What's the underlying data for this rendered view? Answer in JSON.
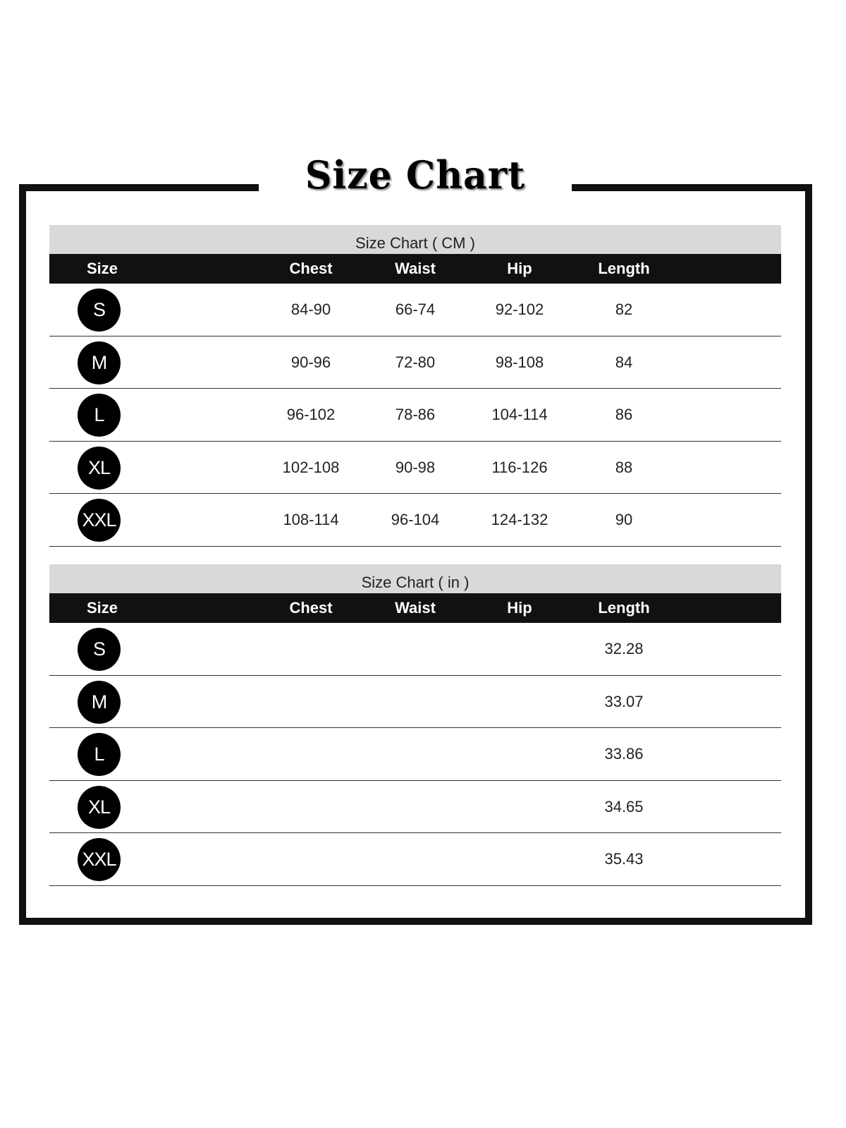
{
  "title": "Size Chart",
  "columns": [
    "Size",
    "Chest",
    "Waist",
    "Hip",
    "Length"
  ],
  "tables": [
    {
      "caption": "Size Chart ( CM )",
      "rows": [
        {
          "size": "S",
          "chest": "84-90",
          "waist": "66-74",
          "hip": "92-102",
          "length": "82"
        },
        {
          "size": "M",
          "chest": "90-96",
          "waist": "72-80",
          "hip": "98-108",
          "length": "84"
        },
        {
          "size": "L",
          "chest": "96-102",
          "waist": "78-86",
          "hip": "104-114",
          "length": "86"
        },
        {
          "size": "XL",
          "chest": "102-108",
          "waist": "90-98",
          "hip": "116-126",
          "length": "88"
        },
        {
          "size": "XXL",
          "chest": "108-114",
          "waist": "96-104",
          "hip": "124-132",
          "length": "90"
        }
      ]
    },
    {
      "caption": "Size Chart ( in )",
      "rows": [
        {
          "size": "S",
          "chest": "",
          "waist": "",
          "hip": "",
          "length": "32.28"
        },
        {
          "size": "M",
          "chest": "",
          "waist": "",
          "hip": "",
          "length": "33.07"
        },
        {
          "size": "L",
          "chest": "",
          "waist": "",
          "hip": "",
          "length": "33.86"
        },
        {
          "size": "XL",
          "chest": "",
          "waist": "",
          "hip": "",
          "length": "34.65"
        },
        {
          "size": "XXL",
          "chest": "",
          "waist": "",
          "hip": "",
          "length": "35.43"
        }
      ]
    }
  ]
}
